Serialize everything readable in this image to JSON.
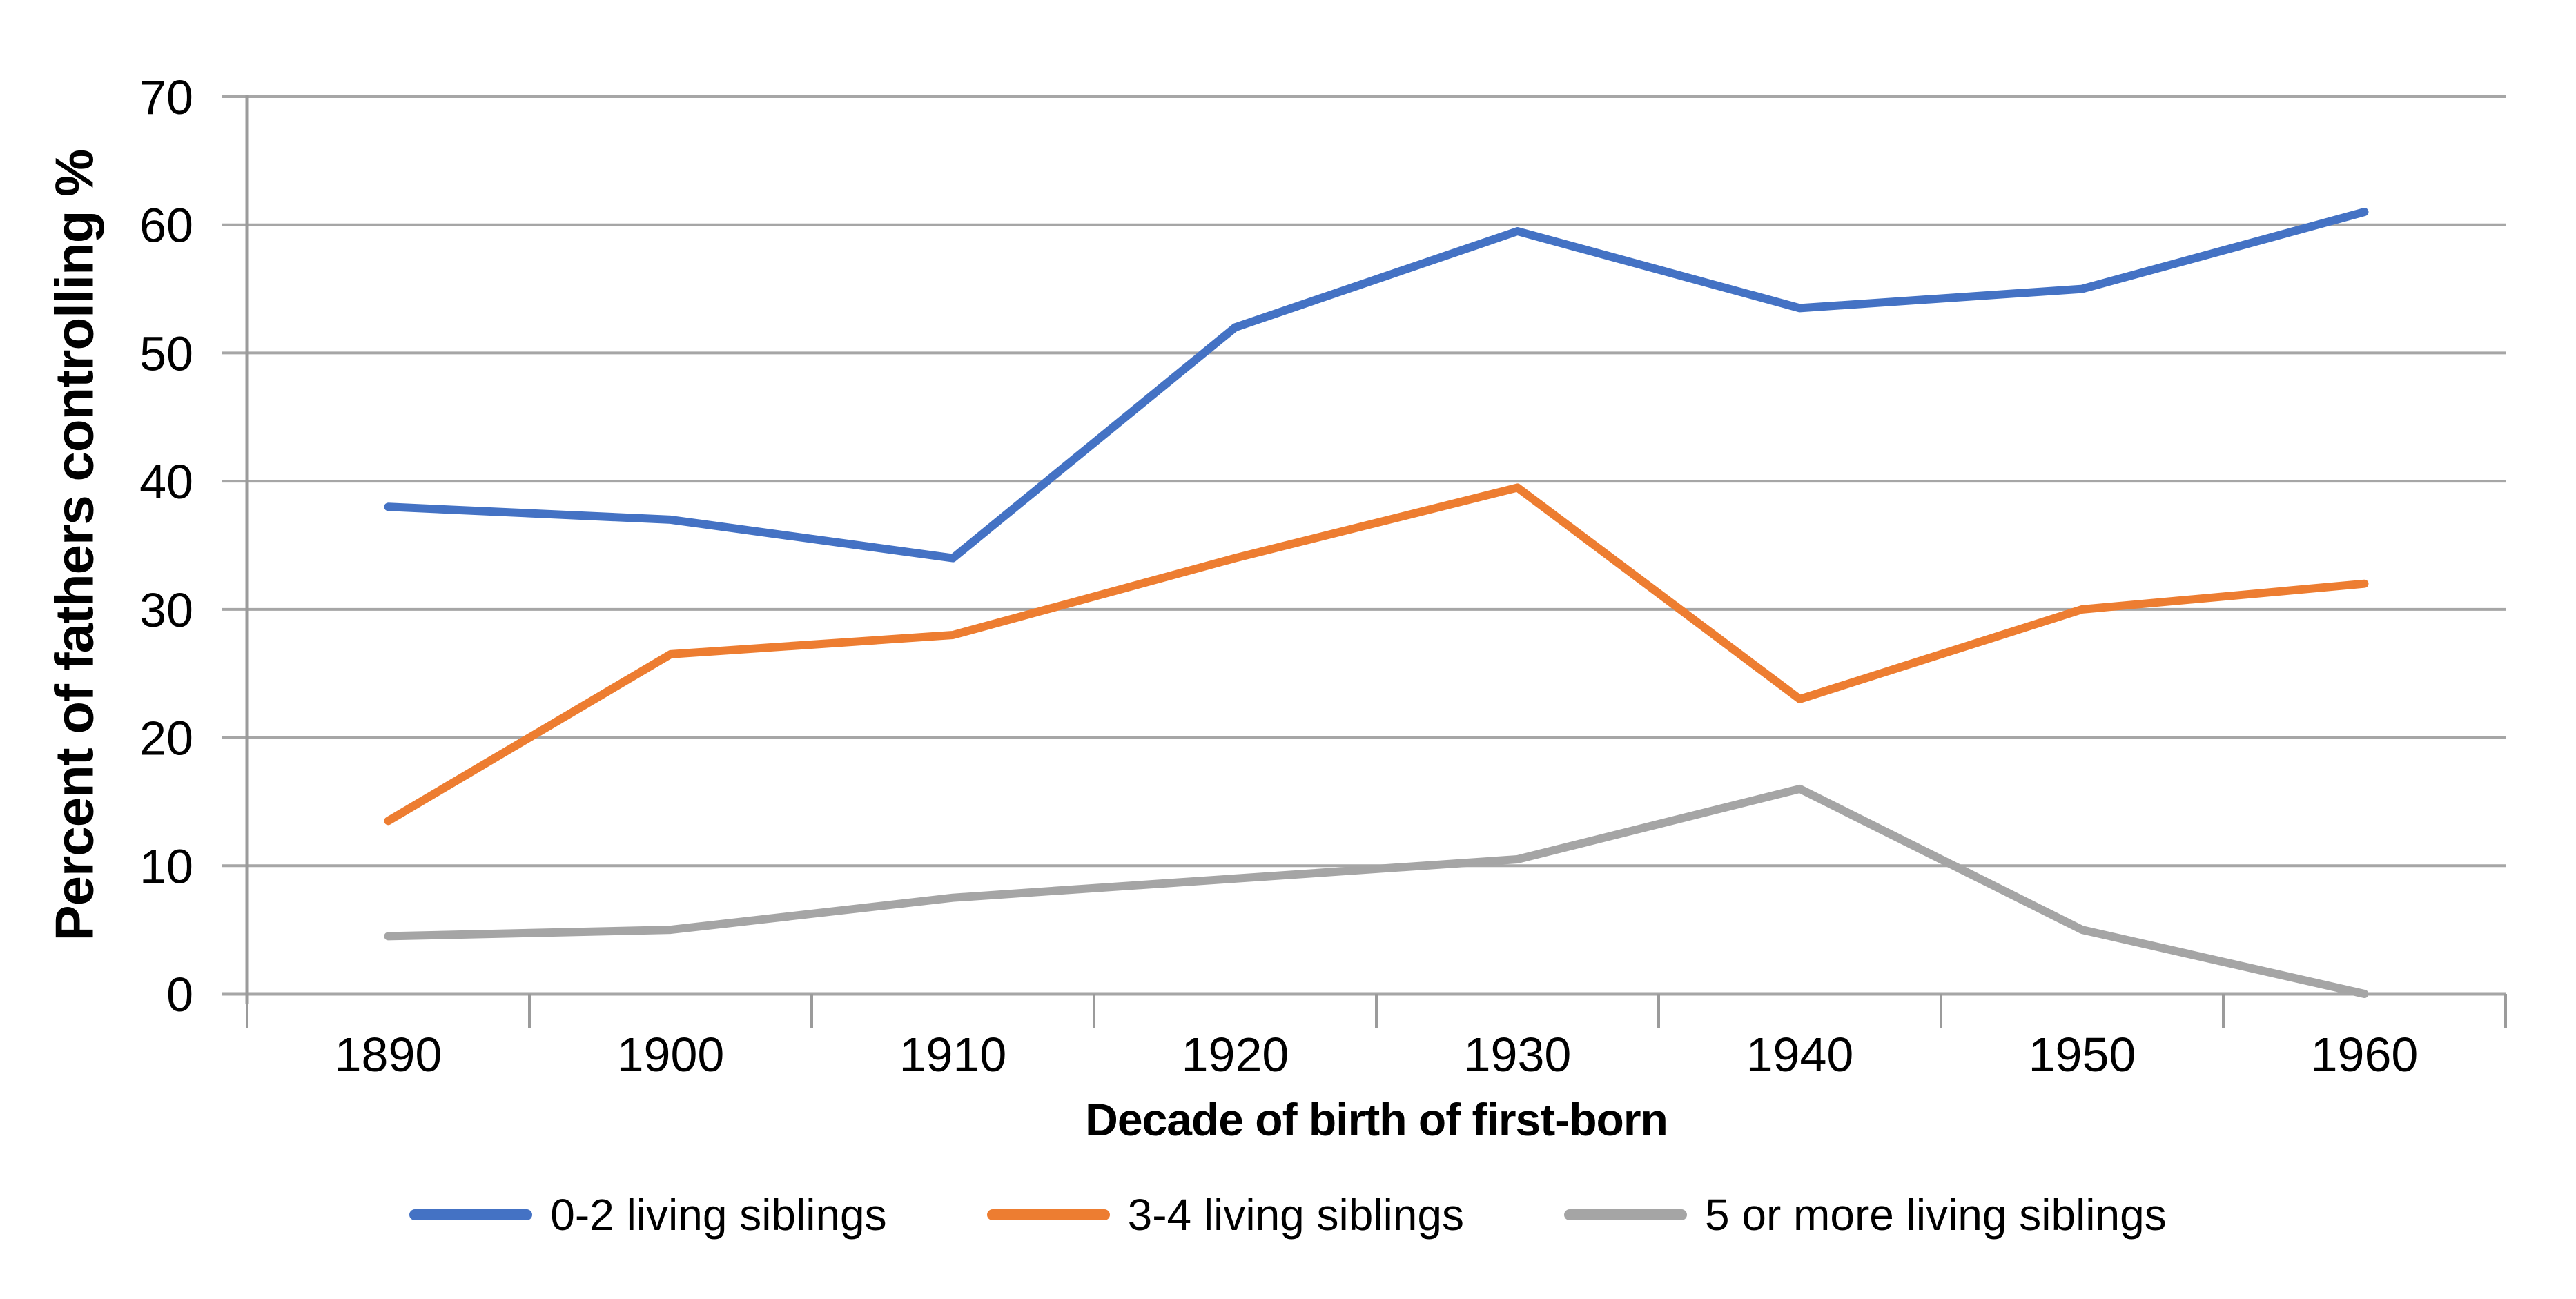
{
  "chart_data": {
    "type": "line",
    "categories": [
      "1890",
      "1900",
      "1910",
      "1920",
      "1930",
      "1940",
      "1950",
      "1960"
    ],
    "series": [
      {
        "name": "0-2 living siblings",
        "color": "#4472C4",
        "values": [
          38,
          37,
          34,
          52,
          59.5,
          53.5,
          55,
          61
        ]
      },
      {
        "name": "3-4 living siblings",
        "color": "#ED7D31",
        "values": [
          13.5,
          26.5,
          28,
          34,
          39.5,
          23,
          30,
          32
        ]
      },
      {
        "name": "5 or more living siblings",
        "color": "#A5A5A5",
        "values": [
          4.5,
          5,
          7.5,
          9,
          10.5,
          16,
          5,
          0
        ]
      }
    ],
    "title": "",
    "xlabel": "Decade of birth of first-born",
    "ylabel": "Percent of fathers controlling %",
    "ylim": [
      0,
      70
    ],
    "ytick_step": 10,
    "yticks": [
      "0",
      "10",
      "20",
      "30",
      "40",
      "50",
      "60",
      "70"
    ],
    "grid": "horizontal",
    "legend_position": "bottom",
    "gridline_color": "#a6a6a6",
    "axis_color": "#9b9b9b",
    "text_color": "#000000"
  }
}
